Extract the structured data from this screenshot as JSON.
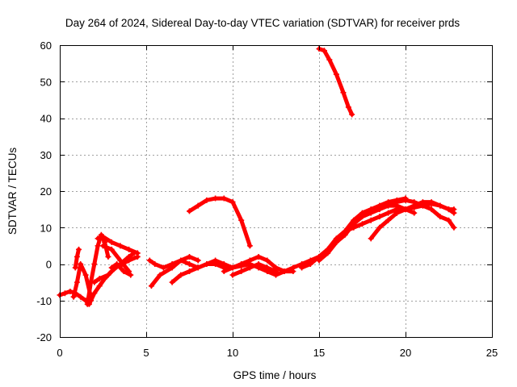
{
  "chart_data": {
    "type": "scatter",
    "title": "Day 264 of 2024, Sidereal Day-to-day VTEC variation (SDTVAR) for receiver prds",
    "xlabel": "GPS time / hours",
    "ylabel": "SDTVAR / TECUs",
    "xlim": [
      0,
      25
    ],
    "ylim": [
      -20,
      60
    ],
    "xticks": [
      0,
      5,
      10,
      15,
      20,
      25
    ],
    "yticks": [
      -20,
      -10,
      0,
      10,
      20,
      30,
      40,
      50,
      60
    ],
    "grid": true,
    "marker": "+",
    "color": "#ff0000",
    "series": [
      {
        "name": "seg-early-1",
        "x": [
          0.0,
          0.3,
          0.6,
          0.9,
          1.2,
          1.5,
          1.7,
          1.8,
          2.0,
          2.3,
          2.6,
          3.0,
          3.5,
          4.0,
          4.3
        ],
        "y": [
          -8.5,
          -8,
          -7.5,
          -8,
          -9,
          -10,
          -11,
          -10,
          -8,
          -6,
          -4,
          -2,
          0,
          2,
          3
        ]
      },
      {
        "name": "seg-early-2",
        "x": [
          0.8,
          1.0,
          1.2,
          1.5,
          1.8
        ],
        "y": [
          -9,
          -5,
          0,
          -3,
          -9
        ]
      },
      {
        "name": "seg-early-3",
        "x": [
          0.9,
          1.0,
          1.1
        ],
        "y": [
          -1,
          2,
          4
        ]
      },
      {
        "name": "seg-early-4",
        "x": [
          1.6,
          1.8,
          2.0,
          2.2,
          2.4,
          2.6,
          2.8
        ],
        "y": [
          -11,
          -5,
          0,
          5,
          8,
          6,
          2
        ]
      },
      {
        "name": "seg-early-5",
        "x": [
          2.2,
          2.5,
          3.0,
          3.5,
          4.0,
          4.5
        ],
        "y": [
          7,
          7.5,
          6,
          5,
          4,
          3
        ]
      },
      {
        "name": "seg-early-6",
        "x": [
          2.0,
          2.3,
          2.8,
          3.2,
          3.6,
          4.0,
          4.5
        ],
        "y": [
          -5,
          -4,
          -3,
          -1,
          0,
          1,
          2
        ]
      },
      {
        "name": "seg-early-7",
        "x": [
          2.5,
          3.0,
          3.5,
          4.0
        ],
        "y": [
          5,
          4,
          1,
          -2
        ]
      },
      {
        "name": "seg-early-8",
        "x": [
          3.0,
          3.3,
          3.7,
          4.1
        ],
        "y": [
          -1,
          0,
          -2,
          -3
        ]
      },
      {
        "name": "seg-mid-1",
        "x": [
          5.2,
          5.5,
          6.0,
          6.5,
          7.0,
          7.5,
          8.0,
          8.5,
          9.0,
          9.5,
          10.0,
          10.5,
          11.0,
          11.5,
          12.0,
          12.5,
          13.0,
          13.5
        ],
        "y": [
          1,
          0,
          -1,
          0,
          1,
          0,
          -1,
          0,
          1,
          0,
          -1,
          -0.5,
          0,
          -1,
          -2,
          -3,
          -2,
          -1
        ]
      },
      {
        "name": "seg-mid-2",
        "x": [
          5.3,
          5.8,
          6.5,
          7.0,
          7.5,
          8.0
        ],
        "y": [
          -6,
          -3,
          -1,
          1,
          2,
          1
        ]
      },
      {
        "name": "seg-mid-3",
        "x": [
          6.5,
          7.0,
          7.5,
          8.0,
          8.5,
          9.0,
          9.5,
          10.0,
          10.5,
          11.0
        ],
        "y": [
          -5,
          -3,
          -2,
          -1,
          0,
          0,
          -1,
          -1,
          0,
          1
        ]
      },
      {
        "name": "seg-mid-4",
        "x": [
          9.5,
          10.0,
          10.5,
          11.0,
          11.5,
          12.0,
          12.5,
          13.0,
          13.5
        ],
        "y": [
          -2,
          -1,
          0,
          1,
          2,
          1,
          -1,
          -2,
          -2
        ]
      },
      {
        "name": "seg-mid-5",
        "x": [
          10.0,
          10.5,
          11.0,
          11.5,
          12.0,
          12.5
        ],
        "y": [
          -3,
          -2,
          -1,
          0,
          -1,
          -2
        ]
      },
      {
        "name": "seg-arc-1",
        "x": [
          7.5,
          8.0,
          8.5,
          9.0,
          9.5,
          10.0,
          10.5,
          11.0
        ],
        "y": [
          14.5,
          16,
          17.5,
          18,
          18,
          17,
          12,
          5
        ]
      },
      {
        "name": "seg-arc-2",
        "x": [
          15.0,
          15.3,
          15.6,
          16.0,
          16.4,
          16.7,
          16.9
        ],
        "y": [
          59,
          58.5,
          56,
          52,
          47,
          43,
          41
        ]
      },
      {
        "name": "seg-late-1",
        "x": [
          13.5,
          14.0,
          14.5,
          15.0,
          15.5,
          16.0,
          16.5,
          17.0,
          17.5,
          18.0,
          18.5,
          19.0,
          19.5,
          20.0
        ],
        "y": [
          -1,
          0,
          1,
          2,
          4,
          6,
          9,
          12,
          14,
          15,
          16,
          17,
          17.5,
          18
        ]
      },
      {
        "name": "seg-late-2",
        "x": [
          14.0,
          14.5,
          15.0,
          15.5,
          16.0,
          16.5,
          17.0,
          17.5,
          18.0,
          18.5,
          19.0,
          19.5,
          20.0,
          20.5
        ],
        "y": [
          -1,
          0,
          2,
          4,
          7,
          9,
          10,
          11,
          12,
          13,
          14,
          15,
          15,
          14
        ]
      },
      {
        "name": "seg-late-3",
        "x": [
          15.0,
          15.5,
          16.0,
          16.5,
          17.0,
          17.5,
          18.0,
          18.5,
          19.0,
          19.5,
          20.0
        ],
        "y": [
          1,
          3,
          6,
          8,
          11,
          13,
          14,
          15,
          16,
          16,
          15
        ]
      },
      {
        "name": "seg-late-4",
        "x": [
          18.0,
          18.5,
          19.0,
          19.5,
          20.0,
          20.5,
          21.0,
          21.5,
          22.0,
          22.5,
          22.8
        ],
        "y": [
          7,
          10,
          12,
          14,
          15,
          16,
          17,
          17,
          16,
          15,
          14
        ]
      },
      {
        "name": "seg-late-5",
        "x": [
          19.0,
          19.5,
          20.0,
          20.5,
          21.0,
          21.5,
          22.0,
          22.5,
          22.8
        ],
        "y": [
          16,
          17,
          17.5,
          17,
          16,
          15,
          13,
          12,
          10
        ]
      },
      {
        "name": "seg-late-6",
        "x": [
          19.5,
          20.0,
          20.5,
          21.0,
          21.5,
          22.0,
          22.5,
          22.8
        ],
        "y": [
          14,
          15,
          15.5,
          16,
          16.5,
          16,
          15,
          15
        ]
      }
    ]
  }
}
